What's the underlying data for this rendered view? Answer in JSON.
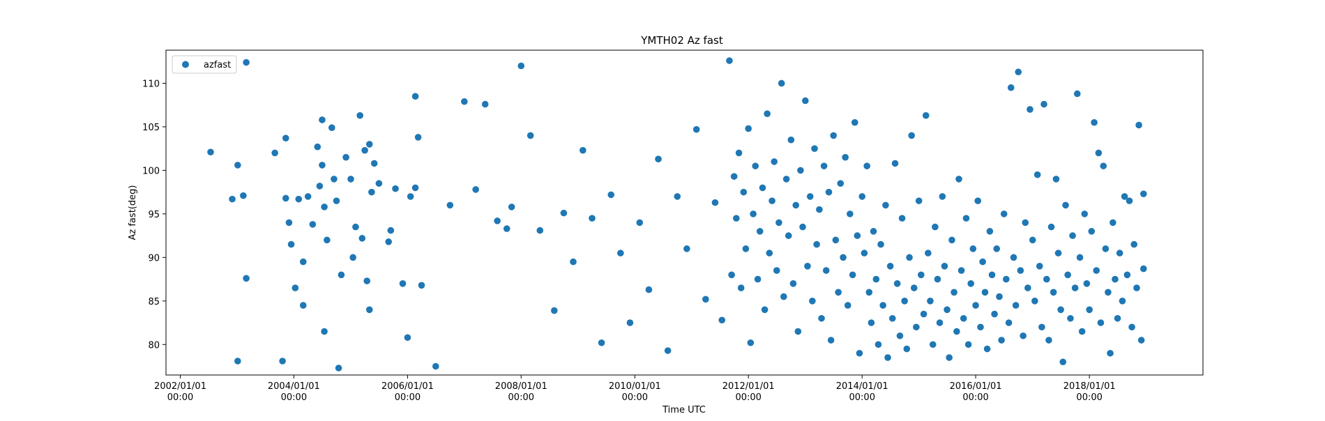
{
  "chart_data": {
    "type": "scatter",
    "title": "YMTH02 Az fast",
    "xlabel": "Time UTC",
    "ylabel": "Az fast(deg)",
    "xlim": [
      "2001/10/01",
      "2020/01/01"
    ],
    "ylim": [
      76.5,
      113.8
    ],
    "x_ticks": [
      {
        "date": "2002/01/01",
        "line1": "2002/01/01",
        "line2": "00:00"
      },
      {
        "date": "2004/01/01",
        "line1": "2004/01/01",
        "line2": "00:00"
      },
      {
        "date": "2006/01/01",
        "line1": "2006/01/01",
        "line2": "00:00"
      },
      {
        "date": "2008/01/01",
        "line1": "2008/01/01",
        "line2": "00:00"
      },
      {
        "date": "2010/01/01",
        "line1": "2010/01/01",
        "line2": "00:00"
      },
      {
        "date": "2012/01/01",
        "line1": "2012/01/01",
        "line2": "00:00"
      },
      {
        "date": "2014/01/01",
        "line1": "2014/01/01",
        "line2": "00:00"
      },
      {
        "date": "2016/01/01",
        "line1": "2016/01/01",
        "line2": "00:00"
      },
      {
        "date": "2018/01/01",
        "line1": "2018/01/01",
        "line2": "00:00"
      }
    ],
    "y_ticks": [
      80,
      85,
      90,
      95,
      100,
      105,
      110
    ],
    "grid": false,
    "legend_position": "upper-left",
    "series": [
      {
        "name": "azfast",
        "color": "#1f77b4",
        "points": [
          [
            "2002/07/15",
            102.1
          ],
          [
            "2002/12/01",
            96.7
          ],
          [
            "2003/01/05",
            100.6
          ],
          [
            "2003/01/05",
            78.1
          ],
          [
            "2003/02/10",
            97.1
          ],
          [
            "2003/03/01",
            112.4
          ],
          [
            "2003/03/01",
            87.6
          ],
          [
            "2003/09/01",
            102.0
          ],
          [
            "2003/10/20",
            78.1
          ],
          [
            "2003/11/10",
            103.7
          ],
          [
            "2003/11/10",
            96.8
          ],
          [
            "2003/12/01",
            94.0
          ],
          [
            "2003/12/15",
            91.5
          ],
          [
            "2004/01/10",
            86.5
          ],
          [
            "2004/02/01",
            96.7
          ],
          [
            "2004/03/01",
            84.5
          ],
          [
            "2004/03/01",
            89.5
          ],
          [
            "2004/04/01",
            97.0
          ],
          [
            "2004/05/01",
            93.8
          ],
          [
            "2004/06/01",
            102.7
          ],
          [
            "2004/06/15",
            98.2
          ],
          [
            "2004/07/01",
            105.8
          ],
          [
            "2004/07/01",
            100.6
          ],
          [
            "2004/07/15",
            81.5
          ],
          [
            "2004/07/15",
            95.8
          ],
          [
            "2004/08/01",
            92.0
          ],
          [
            "2004/09/01",
            104.9
          ],
          [
            "2004/09/15",
            99.0
          ],
          [
            "2004/10/01",
            96.5
          ],
          [
            "2004/10/15",
            77.3
          ],
          [
            "2004/11/01",
            88.0
          ],
          [
            "2004/12/01",
            101.5
          ],
          [
            "2005/01/01",
            99.0
          ],
          [
            "2005/01/15",
            90.0
          ],
          [
            "2005/02/01",
            93.5
          ],
          [
            "2005/03/01",
            106.3
          ],
          [
            "2005/03/15",
            92.2
          ],
          [
            "2005/04/01",
            102.3
          ],
          [
            "2005/04/15",
            87.3
          ],
          [
            "2005/05/01",
            84.0
          ],
          [
            "2005/05/01",
            103.0
          ],
          [
            "2005/05/15",
            97.5
          ],
          [
            "2005/06/01",
            100.8
          ],
          [
            "2005/07/01",
            98.5
          ],
          [
            "2005/09/01",
            91.8
          ],
          [
            "2005/09/15",
            93.1
          ],
          [
            "2005/10/15",
            97.9
          ],
          [
            "2005/12/01",
            87.0
          ],
          [
            "2006/01/01",
            80.8
          ],
          [
            "2006/01/20",
            97.0
          ],
          [
            "2006/02/20",
            108.5
          ],
          [
            "2006/02/20",
            98.0
          ],
          [
            "2006/03/10",
            103.8
          ],
          [
            "2006/04/01",
            86.8
          ],
          [
            "2006/07/01",
            77.5
          ],
          [
            "2006/10/01",
            96.0
          ],
          [
            "2007/01/01",
            107.9
          ],
          [
            "2007/03/15",
            97.8
          ],
          [
            "2007/05/15",
            107.6
          ],
          [
            "2007/08/01",
            94.2
          ],
          [
            "2007/10/01",
            93.3
          ],
          [
            "2007/11/01",
            95.8
          ],
          [
            "2008/01/01",
            112.0
          ],
          [
            "2008/03/01",
            104.0
          ],
          [
            "2008/05/01",
            93.1
          ],
          [
            "2008/08/01",
            83.9
          ],
          [
            "2008/10/01",
            95.1
          ],
          [
            "2008/12/01",
            89.5
          ],
          [
            "2009/02/01",
            102.3
          ],
          [
            "2009/04/01",
            94.5
          ],
          [
            "2009/06/01",
            80.2
          ],
          [
            "2009/08/01",
            97.2
          ],
          [
            "2009/10/01",
            90.5
          ],
          [
            "2009/12/01",
            82.5
          ],
          [
            "2010/02/01",
            94.0
          ],
          [
            "2010/04/01",
            86.3
          ],
          [
            "2010/06/01",
            101.3
          ],
          [
            "2010/08/01",
            79.3
          ],
          [
            "2010/10/01",
            97.0
          ],
          [
            "2010/12/01",
            91.0
          ],
          [
            "2011/02/01",
            104.7
          ],
          [
            "2011/04/01",
            85.2
          ],
          [
            "2011/06/01",
            96.3
          ],
          [
            "2011/07/15",
            82.8
          ],
          [
            "2011/09/01",
            112.6
          ],
          [
            "2011/09/15",
            88.0
          ],
          [
            "2011/10/01",
            99.3
          ],
          [
            "2011/10/15",
            94.5
          ],
          [
            "2011/11/01",
            102.0
          ],
          [
            "2011/11/15",
            86.5
          ],
          [
            "2011/12/01",
            97.5
          ],
          [
            "2011/12/15",
            91.0
          ],
          [
            "2012/01/01",
            104.8
          ],
          [
            "2012/01/15",
            80.2
          ],
          [
            "2012/02/01",
            95.0
          ],
          [
            "2012/02/15",
            100.5
          ],
          [
            "2012/03/01",
            87.5
          ],
          [
            "2012/03/15",
            93.0
          ],
          [
            "2012/04/01",
            98.0
          ],
          [
            "2012/04/15",
            84.0
          ],
          [
            "2012/05/01",
            106.5
          ],
          [
            "2012/05/15",
            90.5
          ],
          [
            "2012/06/01",
            96.5
          ],
          [
            "2012/06/15",
            101.0
          ],
          [
            "2012/07/01",
            88.5
          ],
          [
            "2012/07/15",
            94.0
          ],
          [
            "2012/08/01",
            110.0
          ],
          [
            "2012/08/15",
            85.5
          ],
          [
            "2012/09/01",
            99.0
          ],
          [
            "2012/09/15",
            92.5
          ],
          [
            "2012/10/01",
            103.5
          ],
          [
            "2012/10/15",
            87.0
          ],
          [
            "2012/11/01",
            96.0
          ],
          [
            "2012/11/15",
            81.5
          ],
          [
            "2012/12/01",
            100.0
          ],
          [
            "2012/12/15",
            93.5
          ],
          [
            "2013/01/01",
            108.0
          ],
          [
            "2013/01/15",
            89.0
          ],
          [
            "2013/02/01",
            97.0
          ],
          [
            "2013/02/15",
            85.0
          ],
          [
            "2013/03/01",
            102.5
          ],
          [
            "2013/03/15",
            91.5
          ],
          [
            "2013/04/01",
            95.5
          ],
          [
            "2013/04/15",
            83.0
          ],
          [
            "2013/05/01",
            100.5
          ],
          [
            "2013/05/15",
            88.5
          ],
          [
            "2013/06/01",
            97.5
          ],
          [
            "2013/06/15",
            80.5
          ],
          [
            "2013/07/01",
            104.0
          ],
          [
            "2013/07/15",
            92.0
          ],
          [
            "2013/08/01",
            86.0
          ],
          [
            "2013/08/15",
            98.5
          ],
          [
            "2013/09/01",
            90.0
          ],
          [
            "2013/09/15",
            101.5
          ],
          [
            "2013/10/01",
            84.5
          ],
          [
            "2013/10/15",
            95.0
          ],
          [
            "2013/11/01",
            88.0
          ],
          [
            "2013/11/15",
            105.5
          ],
          [
            "2013/12/01",
            92.5
          ],
          [
            "2013/12/15",
            79.0
          ],
          [
            "2014/01/01",
            97.0
          ],
          [
            "2014/01/15",
            90.5
          ],
          [
            "2014/02/01",
            100.5
          ],
          [
            "2014/02/15",
            86.0
          ],
          [
            "2014/03/01",
            82.5
          ],
          [
            "2014/03/15",
            93.0
          ],
          [
            "2014/04/01",
            87.5
          ],
          [
            "2014/04/15",
            80.0
          ],
          [
            "2014/05/01",
            91.5
          ],
          [
            "2014/05/15",
            84.5
          ],
          [
            "2014/06/01",
            96.0
          ],
          [
            "2014/06/15",
            78.5
          ],
          [
            "2014/07/01",
            89.0
          ],
          [
            "2014/07/15",
            83.0
          ],
          [
            "2014/08/01",
            100.8
          ],
          [
            "2014/08/15",
            87.0
          ],
          [
            "2014/09/01",
            81.0
          ],
          [
            "2014/09/15",
            94.5
          ],
          [
            "2014/10/01",
            85.0
          ],
          [
            "2014/10/15",
            79.5
          ],
          [
            "2014/11/01",
            90.0
          ],
          [
            "2014/11/15",
            104.0
          ],
          [
            "2014/12/01",
            86.5
          ],
          [
            "2014/12/15",
            82.0
          ],
          [
            "2015/01/01",
            96.5
          ],
          [
            "2015/01/15",
            88.0
          ],
          [
            "2015/02/01",
            83.5
          ],
          [
            "2015/02/15",
            106.3
          ],
          [
            "2015/03/01",
            90.5
          ],
          [
            "2015/03/15",
            85.0
          ],
          [
            "2015/04/01",
            80.0
          ],
          [
            "2015/04/15",
            93.5
          ],
          [
            "2015/05/01",
            87.5
          ],
          [
            "2015/05/15",
            82.5
          ],
          [
            "2015/06/01",
            97.0
          ],
          [
            "2015/06/15",
            89.0
          ],
          [
            "2015/07/01",
            84.0
          ],
          [
            "2015/07/15",
            78.5
          ],
          [
            "2015/08/01",
            92.0
          ],
          [
            "2015/08/15",
            86.0
          ],
          [
            "2015/09/01",
            81.5
          ],
          [
            "2015/09/15",
            99.0
          ],
          [
            "2015/10/01",
            88.5
          ],
          [
            "2015/10/15",
            83.0
          ],
          [
            "2015/11/01",
            94.5
          ],
          [
            "2015/11/15",
            80.0
          ],
          [
            "2015/12/01",
            87.0
          ],
          [
            "2015/12/15",
            91.0
          ],
          [
            "2016/01/01",
            84.5
          ],
          [
            "2016/01/15",
            96.5
          ],
          [
            "2016/02/01",
            82.0
          ],
          [
            "2016/02/15",
            89.5
          ],
          [
            "2016/03/01",
            86.0
          ],
          [
            "2016/03/15",
            79.5
          ],
          [
            "2016/04/01",
            93.0
          ],
          [
            "2016/04/15",
            88.0
          ],
          [
            "2016/05/01",
            83.5
          ],
          [
            "2016/05/15",
            91.0
          ],
          [
            "2016/06/01",
            85.5
          ],
          [
            "2016/06/15",
            80.5
          ],
          [
            "2016/07/01",
            95.0
          ],
          [
            "2016/07/15",
            87.5
          ],
          [
            "2016/08/01",
            82.5
          ],
          [
            "2016/08/15",
            109.5
          ],
          [
            "2016/09/01",
            90.0
          ],
          [
            "2016/09/15",
            84.5
          ],
          [
            "2016/10/01",
            111.3
          ],
          [
            "2016/10/15",
            88.5
          ],
          [
            "2016/11/01",
            81.0
          ],
          [
            "2016/11/15",
            94.0
          ],
          [
            "2016/12/01",
            86.5
          ],
          [
            "2016/12/15",
            107.0
          ],
          [
            "2017/01/01",
            92.0
          ],
          [
            "2017/01/15",
            85.0
          ],
          [
            "2017/02/01",
            99.5
          ],
          [
            "2017/02/15",
            89.0
          ],
          [
            "2017/03/01",
            82.0
          ],
          [
            "2017/03/15",
            107.6
          ],
          [
            "2017/04/01",
            87.5
          ],
          [
            "2017/04/15",
            80.5
          ],
          [
            "2017/05/01",
            93.5
          ],
          [
            "2017/05/15",
            86.0
          ],
          [
            "2017/06/01",
            99.0
          ],
          [
            "2017/06/15",
            90.5
          ],
          [
            "2017/07/01",
            84.0
          ],
          [
            "2017/07/15",
            78.0
          ],
          [
            "2017/08/01",
            96.0
          ],
          [
            "2017/08/15",
            88.0
          ],
          [
            "2017/09/01",
            83.0
          ],
          [
            "2017/09/15",
            92.5
          ],
          [
            "2017/10/01",
            86.5
          ],
          [
            "2017/10/15",
            108.8
          ],
          [
            "2017/11/01",
            90.0
          ],
          [
            "2017/11/15",
            81.5
          ],
          [
            "2017/12/01",
            95.0
          ],
          [
            "2017/12/15",
            87.0
          ],
          [
            "2018/01/01",
            84.0
          ],
          [
            "2018/01/15",
            93.0
          ],
          [
            "2018/02/01",
            105.5
          ],
          [
            "2018/02/15",
            88.5
          ],
          [
            "2018/03/01",
            102.0
          ],
          [
            "2018/03/15",
            82.5
          ],
          [
            "2018/04/01",
            100.5
          ],
          [
            "2018/04/15",
            91.0
          ],
          [
            "2018/05/01",
            86.0
          ],
          [
            "2018/05/15",
            79.0
          ],
          [
            "2018/06/01",
            94.0
          ],
          [
            "2018/06/15",
            87.5
          ],
          [
            "2018/07/01",
            83.0
          ],
          [
            "2018/07/15",
            90.5
          ],
          [
            "2018/08/01",
            85.0
          ],
          [
            "2018/08/15",
            97.0
          ],
          [
            "2018/09/01",
            88.0
          ],
          [
            "2018/09/15",
            96.5
          ],
          [
            "2018/10/01",
            82.0
          ],
          [
            "2018/10/15",
            91.5
          ],
          [
            "2018/11/01",
            86.5
          ],
          [
            "2018/11/15",
            105.2
          ],
          [
            "2018/12/01",
            80.5
          ],
          [
            "2018/12/15",
            88.7
          ],
          [
            "2018/12/15",
            97.3
          ]
        ]
      }
    ]
  }
}
